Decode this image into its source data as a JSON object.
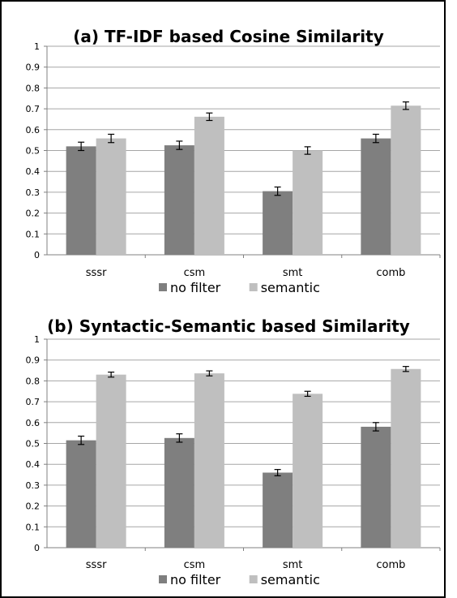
{
  "chart_data": [
    {
      "type": "bar",
      "title": "(a) TF-IDF based Cosine Similarity",
      "categories": [
        "sssr",
        "csm",
        "smt",
        "comb"
      ],
      "series": [
        {
          "name": "no filter",
          "color": "#7f7f7f",
          "values": [
            0.52,
            0.525,
            0.305,
            0.558
          ],
          "errors": [
            0.02,
            0.02,
            0.02,
            0.02
          ]
        },
        {
          "name": "semantic",
          "color": "#bfbfbf",
          "values": [
            0.558,
            0.662,
            0.5,
            0.715
          ],
          "errors": [
            0.02,
            0.018,
            0.018,
            0.018
          ]
        }
      ],
      "ylim": [
        0,
        1
      ],
      "yticks": [
        "0",
        "0.1",
        "0.2",
        "0.3",
        "0.4",
        "0.5",
        "0.6",
        "0.7",
        "0.8",
        "0.9",
        "1"
      ],
      "grid": true,
      "legend": "bottom"
    },
    {
      "type": "bar",
      "title": "(b) Syntactic-Semantic based Similarity",
      "categories": [
        "sssr",
        "csm",
        "smt",
        "comb"
      ],
      "series": [
        {
          "name": "no filter",
          "color": "#7f7f7f",
          "values": [
            0.515,
            0.526,
            0.36,
            0.58
          ],
          "errors": [
            0.02,
            0.02,
            0.015,
            0.02
          ]
        },
        {
          "name": "semantic",
          "color": "#bfbfbf",
          "values": [
            0.83,
            0.836,
            0.738,
            0.857
          ],
          "errors": [
            0.012,
            0.012,
            0.012,
            0.012
          ]
        }
      ],
      "ylim": [
        0,
        1
      ],
      "yticks": [
        "0",
        "0.1",
        "0.2",
        "0.3",
        "0.4",
        "0.5",
        "0.6",
        "0.7",
        "0.8",
        "0.9",
        "1"
      ],
      "grid": true,
      "legend": "bottom"
    }
  ]
}
